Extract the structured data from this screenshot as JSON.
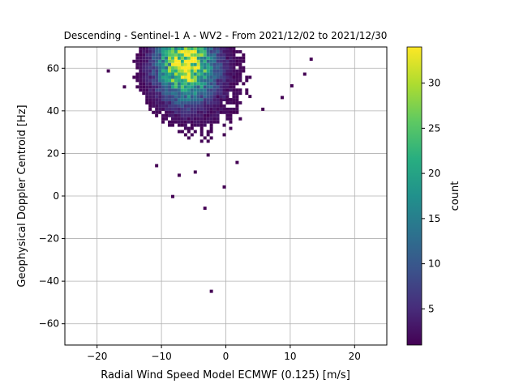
{
  "chart_data": {
    "type": "heatmap",
    "title": "Descending - Sentinel-1 A - WV2 - From 2021/12/02 to 2021/12/30",
    "xlabel": "Radial Wind Speed Model ECMWF (0.125) [m/s]",
    "ylabel": "Geophysical Doppler Centroid [Hz]",
    "xlim": [
      -25,
      25
    ],
    "ylim": [
      -70,
      70
    ],
    "xticks": [
      -20,
      -10,
      0,
      10,
      20
    ],
    "xtick_labels": [
      "−20",
      "−10",
      "0",
      "10",
      "20"
    ],
    "yticks": [
      -60,
      -40,
      -20,
      0,
      20,
      40,
      60
    ],
    "ytick_labels": [
      "−60",
      "−40",
      "−20",
      "0",
      "20",
      "40",
      "60"
    ],
    "grid": true,
    "bin_width_x": 0.5,
    "bin_width_y": 1.5,
    "colormap": "viridis",
    "colorbar": {
      "label": "count",
      "min": 1,
      "max": 34,
      "ticks": [
        5,
        10,
        15,
        20,
        25,
        30
      ],
      "tick_labels": [
        "5",
        "10",
        "15",
        "20",
        "25",
        "30"
      ]
    },
    "density_model": {
      "peak_x": -6.5,
      "peak_y": 61,
      "spread_x": 3.0,
      "spread_y": 8.0,
      "peak_count": 34,
      "cutoff_count": 1
    },
    "outlier_bins": [
      {
        "x": -2.5,
        "y": -45.5,
        "count": 1
      },
      {
        "x": -3.5,
        "y": -6.5,
        "count": 1
      },
      {
        "x": -8.5,
        "y": -1.0,
        "count": 1
      },
      {
        "x": -0.5,
        "y": 3.5,
        "count": 1
      },
      {
        "x": 1.5,
        "y": 15.0,
        "count": 1
      },
      {
        "x": -11.0,
        "y": 13.5,
        "count": 1
      },
      {
        "x": -18.5,
        "y": 58.0,
        "count": 1
      },
      {
        "x": -16.0,
        "y": 50.5,
        "count": 1
      },
      {
        "x": 8.5,
        "y": 45.5,
        "count": 1
      },
      {
        "x": 5.5,
        "y": 40.0,
        "count": 1
      },
      {
        "x": 13.0,
        "y": 63.5,
        "count": 1
      },
      {
        "x": 12.0,
        "y": 56.5,
        "count": 1
      },
      {
        "x": 10.0,
        "y": 51.0,
        "count": 1
      },
      {
        "x": -5.0,
        "y": 10.5,
        "count": 1
      },
      {
        "x": -3.0,
        "y": 18.5,
        "count": 1
      },
      {
        "x": -7.5,
        "y": 9.0,
        "count": 1
      }
    ]
  }
}
